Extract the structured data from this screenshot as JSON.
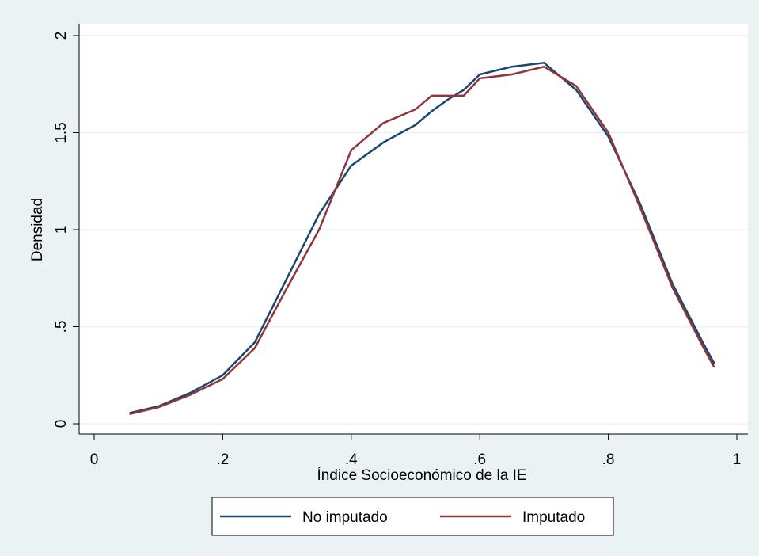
{
  "chart_data": {
    "type": "line",
    "x_label": "Índice Socioeconómico de la IE",
    "y_label": "Densidad",
    "x": [
      0.055,
      0.1,
      0.15,
      0.2,
      0.25,
      0.3,
      0.35,
      0.4,
      0.45,
      0.5,
      0.525,
      0.55,
      0.575,
      0.6,
      0.65,
      0.7,
      0.75,
      0.8,
      0.85,
      0.9,
      0.95,
      0.965
    ],
    "series": [
      {
        "name": "No imputado",
        "color": "#1a476f",
        "values": [
          0.055,
          0.09,
          0.16,
          0.25,
          0.42,
          0.75,
          1.08,
          1.33,
          1.45,
          1.54,
          1.61,
          1.67,
          1.72,
          1.8,
          1.84,
          1.86,
          1.72,
          1.48,
          1.13,
          0.72,
          0.4,
          0.31
        ]
      },
      {
        "name": "Imputado",
        "color": "#90353b",
        "values": [
          0.05,
          0.085,
          0.15,
          0.23,
          0.39,
          0.7,
          1.0,
          1.41,
          1.55,
          1.62,
          1.69,
          1.69,
          1.69,
          1.78,
          1.8,
          1.84,
          1.74,
          1.5,
          1.11,
          0.7,
          0.38,
          0.29
        ]
      }
    ],
    "xlim": [
      0,
      1
    ],
    "xticks": [
      0,
      {
        "value": 0.2,
        "label": ".2"
      },
      {
        "value": 0.4,
        "label": ".4"
      },
      {
        "value": 0.6,
        "label": ".6"
      },
      {
        "value": 0.8,
        "label": ".8"
      },
      1
    ],
    "ylim": [
      0,
      2
    ],
    "yticks": [
      0,
      {
        "value": 0.5,
        "label": ".5"
      },
      1,
      1.5,
      2
    ],
    "grid": true,
    "legend": "bottom"
  }
}
